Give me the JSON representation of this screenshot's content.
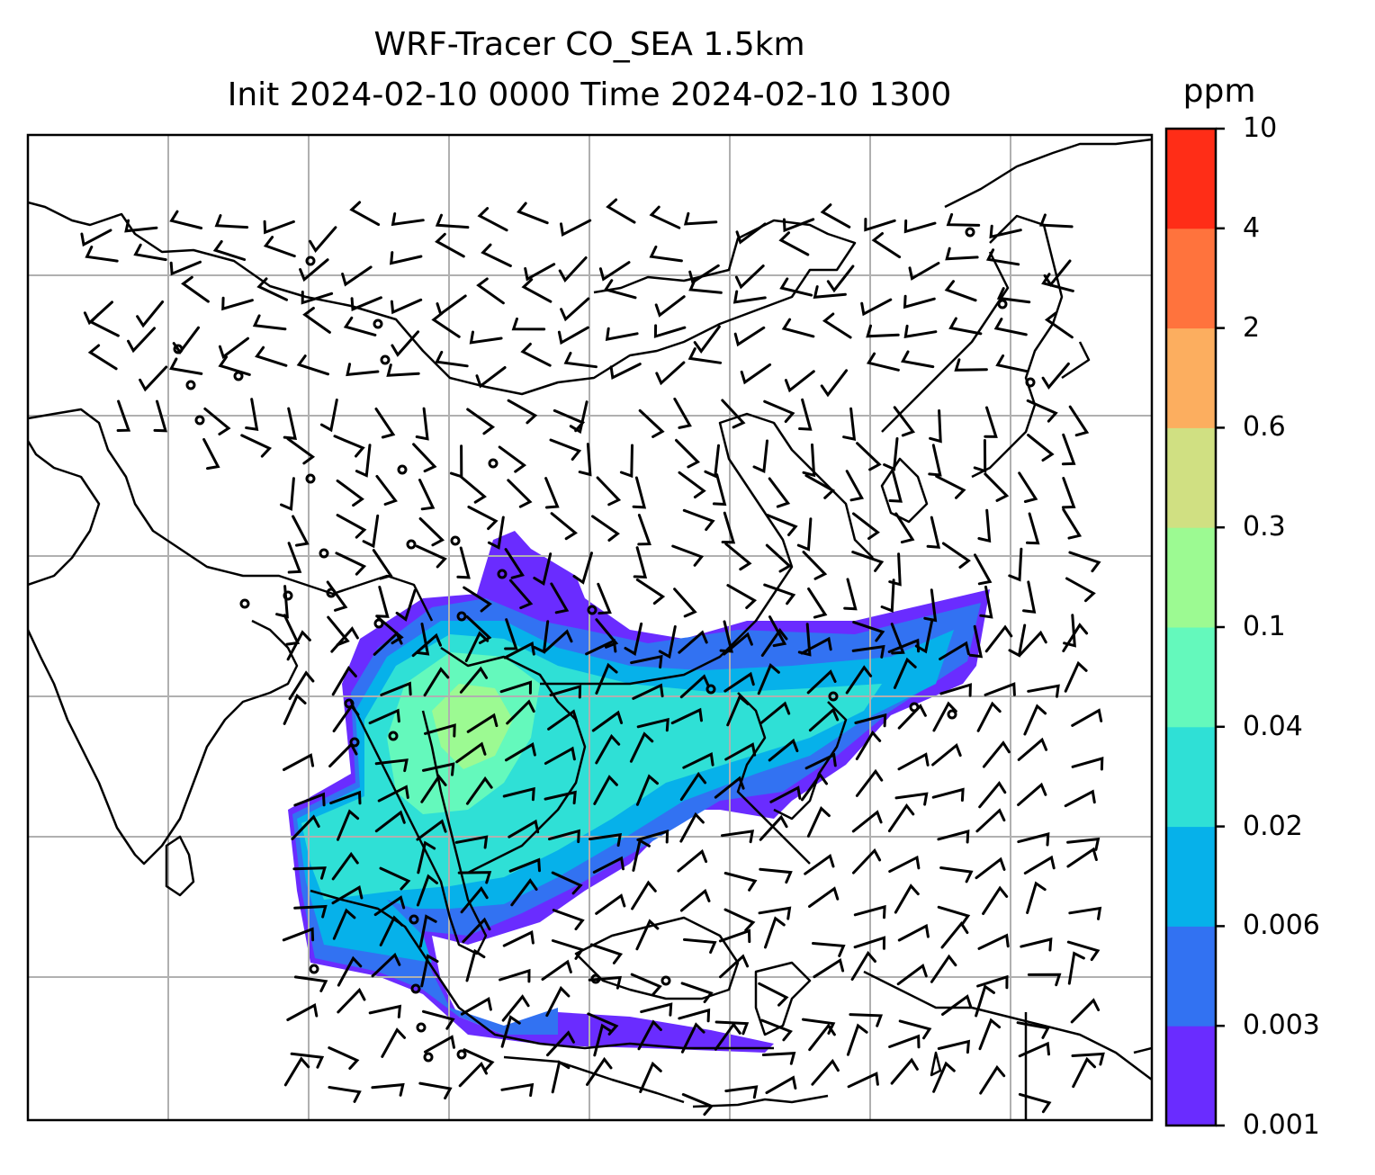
{
  "title_line1": "WRF-Tracer CO_SEA 1.5km",
  "title_line2": "Init 2024-02-10 0000 Time 2024-02-10 1300",
  "colorbar": {
    "unit": "ppm",
    "ticks": [
      "0.001",
      "0.003",
      "0.006",
      "0.02",
      "0.04",
      "0.1",
      "0.3",
      "0.6",
      "2",
      "4",
      "10"
    ],
    "colors": [
      "#6a2cff",
      "#3272f2",
      "#06b1ea",
      "#2fe0d6",
      "#64f9bc",
      "#9cfa92",
      "#d0e082",
      "#fcae5f",
      "#ff733d",
      "#ff2d17"
    ]
  },
  "map": {
    "gridlines": true,
    "coastline_color": "#000000",
    "wind_barbs": true,
    "plume_levels": [
      "0.001",
      "0.003",
      "0.006",
      "0.02",
      "0.04",
      "0.1"
    ]
  }
}
